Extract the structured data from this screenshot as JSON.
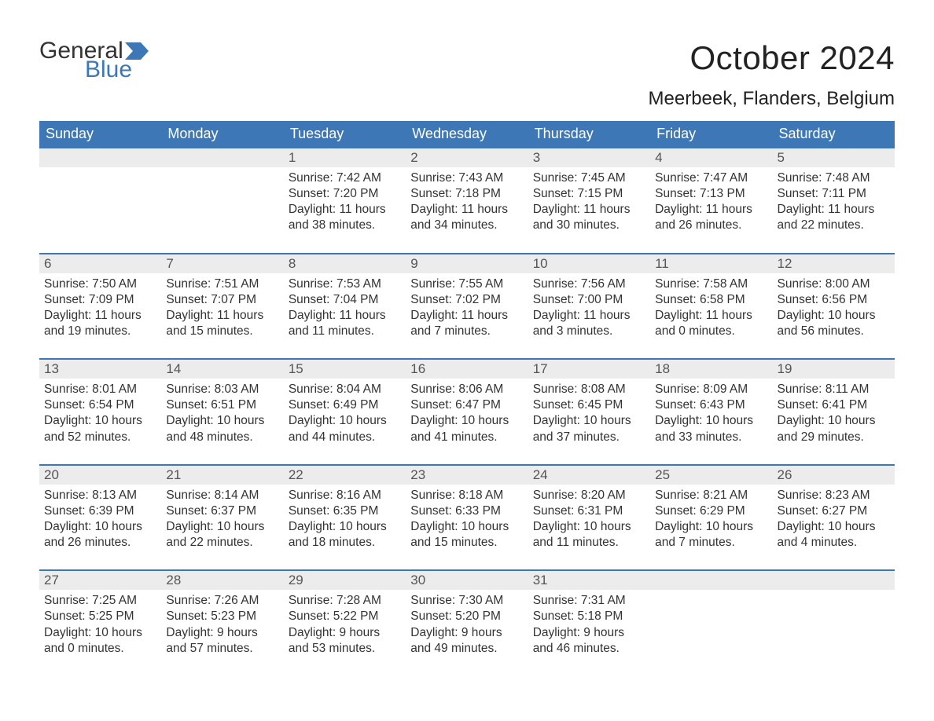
{
  "logo": {
    "word1": "General",
    "word2": "Blue",
    "flag_color": "#3d77b6"
  },
  "header": {
    "month_title": "October 2024",
    "location": "Meerbeek, Flanders, Belgium"
  },
  "calendar": {
    "type": "table",
    "colors": {
      "header_bg": "#3d77b6",
      "header_text": "#ffffff",
      "daynum_bg": "#ececec",
      "daynum_border_top": "#3d77b6",
      "daynum_text": "#555555",
      "body_text": "#333333",
      "page_bg": "#ffffff"
    },
    "fonts": {
      "month_title_pt": 42,
      "location_pt": 24,
      "dow_pt": 18,
      "daynum_pt": 17,
      "body_pt": 15.5,
      "family": "Arial"
    },
    "days_of_week": [
      "Sunday",
      "Monday",
      "Tuesday",
      "Wednesday",
      "Thursday",
      "Friday",
      "Saturday"
    ],
    "weeks": [
      [
        null,
        null,
        {
          "n": "1",
          "sunrise": "Sunrise: 7:42 AM",
          "sunset": "Sunset: 7:20 PM",
          "day1": "Daylight: 11 hours",
          "day2": "and 38 minutes."
        },
        {
          "n": "2",
          "sunrise": "Sunrise: 7:43 AM",
          "sunset": "Sunset: 7:18 PM",
          "day1": "Daylight: 11 hours",
          "day2": "and 34 minutes."
        },
        {
          "n": "3",
          "sunrise": "Sunrise: 7:45 AM",
          "sunset": "Sunset: 7:15 PM",
          "day1": "Daylight: 11 hours",
          "day2": "and 30 minutes."
        },
        {
          "n": "4",
          "sunrise": "Sunrise: 7:47 AM",
          "sunset": "Sunset: 7:13 PM",
          "day1": "Daylight: 11 hours",
          "day2": "and 26 minutes."
        },
        {
          "n": "5",
          "sunrise": "Sunrise: 7:48 AM",
          "sunset": "Sunset: 7:11 PM",
          "day1": "Daylight: 11 hours",
          "day2": "and 22 minutes."
        }
      ],
      [
        {
          "n": "6",
          "sunrise": "Sunrise: 7:50 AM",
          "sunset": "Sunset: 7:09 PM",
          "day1": "Daylight: 11 hours",
          "day2": "and 19 minutes."
        },
        {
          "n": "7",
          "sunrise": "Sunrise: 7:51 AM",
          "sunset": "Sunset: 7:07 PM",
          "day1": "Daylight: 11 hours",
          "day2": "and 15 minutes."
        },
        {
          "n": "8",
          "sunrise": "Sunrise: 7:53 AM",
          "sunset": "Sunset: 7:04 PM",
          "day1": "Daylight: 11 hours",
          "day2": "and 11 minutes."
        },
        {
          "n": "9",
          "sunrise": "Sunrise: 7:55 AM",
          "sunset": "Sunset: 7:02 PM",
          "day1": "Daylight: 11 hours",
          "day2": "and 7 minutes."
        },
        {
          "n": "10",
          "sunrise": "Sunrise: 7:56 AM",
          "sunset": "Sunset: 7:00 PM",
          "day1": "Daylight: 11 hours",
          "day2": "and 3 minutes."
        },
        {
          "n": "11",
          "sunrise": "Sunrise: 7:58 AM",
          "sunset": "Sunset: 6:58 PM",
          "day1": "Daylight: 11 hours",
          "day2": "and 0 minutes."
        },
        {
          "n": "12",
          "sunrise": "Sunrise: 8:00 AM",
          "sunset": "Sunset: 6:56 PM",
          "day1": "Daylight: 10 hours",
          "day2": "and 56 minutes."
        }
      ],
      [
        {
          "n": "13",
          "sunrise": "Sunrise: 8:01 AM",
          "sunset": "Sunset: 6:54 PM",
          "day1": "Daylight: 10 hours",
          "day2": "and 52 minutes."
        },
        {
          "n": "14",
          "sunrise": "Sunrise: 8:03 AM",
          "sunset": "Sunset: 6:51 PM",
          "day1": "Daylight: 10 hours",
          "day2": "and 48 minutes."
        },
        {
          "n": "15",
          "sunrise": "Sunrise: 8:04 AM",
          "sunset": "Sunset: 6:49 PM",
          "day1": "Daylight: 10 hours",
          "day2": "and 44 minutes."
        },
        {
          "n": "16",
          "sunrise": "Sunrise: 8:06 AM",
          "sunset": "Sunset: 6:47 PM",
          "day1": "Daylight: 10 hours",
          "day2": "and 41 minutes."
        },
        {
          "n": "17",
          "sunrise": "Sunrise: 8:08 AM",
          "sunset": "Sunset: 6:45 PM",
          "day1": "Daylight: 10 hours",
          "day2": "and 37 minutes."
        },
        {
          "n": "18",
          "sunrise": "Sunrise: 8:09 AM",
          "sunset": "Sunset: 6:43 PM",
          "day1": "Daylight: 10 hours",
          "day2": "and 33 minutes."
        },
        {
          "n": "19",
          "sunrise": "Sunrise: 8:11 AM",
          "sunset": "Sunset: 6:41 PM",
          "day1": "Daylight: 10 hours",
          "day2": "and 29 minutes."
        }
      ],
      [
        {
          "n": "20",
          "sunrise": "Sunrise: 8:13 AM",
          "sunset": "Sunset: 6:39 PM",
          "day1": "Daylight: 10 hours",
          "day2": "and 26 minutes."
        },
        {
          "n": "21",
          "sunrise": "Sunrise: 8:14 AM",
          "sunset": "Sunset: 6:37 PM",
          "day1": "Daylight: 10 hours",
          "day2": "and 22 minutes."
        },
        {
          "n": "22",
          "sunrise": "Sunrise: 8:16 AM",
          "sunset": "Sunset: 6:35 PM",
          "day1": "Daylight: 10 hours",
          "day2": "and 18 minutes."
        },
        {
          "n": "23",
          "sunrise": "Sunrise: 8:18 AM",
          "sunset": "Sunset: 6:33 PM",
          "day1": "Daylight: 10 hours",
          "day2": "and 15 minutes."
        },
        {
          "n": "24",
          "sunrise": "Sunrise: 8:20 AM",
          "sunset": "Sunset: 6:31 PM",
          "day1": "Daylight: 10 hours",
          "day2": "and 11 minutes."
        },
        {
          "n": "25",
          "sunrise": "Sunrise: 8:21 AM",
          "sunset": "Sunset: 6:29 PM",
          "day1": "Daylight: 10 hours",
          "day2": "and 7 minutes."
        },
        {
          "n": "26",
          "sunrise": "Sunrise: 8:23 AM",
          "sunset": "Sunset: 6:27 PM",
          "day1": "Daylight: 10 hours",
          "day2": "and 4 minutes."
        }
      ],
      [
        {
          "n": "27",
          "sunrise": "Sunrise: 7:25 AM",
          "sunset": "Sunset: 5:25 PM",
          "day1": "Daylight: 10 hours",
          "day2": "and 0 minutes."
        },
        {
          "n": "28",
          "sunrise": "Sunrise: 7:26 AM",
          "sunset": "Sunset: 5:23 PM",
          "day1": "Daylight: 9 hours",
          "day2": "and 57 minutes."
        },
        {
          "n": "29",
          "sunrise": "Sunrise: 7:28 AM",
          "sunset": "Sunset: 5:22 PM",
          "day1": "Daylight: 9 hours",
          "day2": "and 53 minutes."
        },
        {
          "n": "30",
          "sunrise": "Sunrise: 7:30 AM",
          "sunset": "Sunset: 5:20 PM",
          "day1": "Daylight: 9 hours",
          "day2": "and 49 minutes."
        },
        {
          "n": "31",
          "sunrise": "Sunrise: 7:31 AM",
          "sunset": "Sunset: 5:18 PM",
          "day1": "Daylight: 9 hours",
          "day2": "and 46 minutes."
        },
        null,
        null
      ]
    ]
  }
}
